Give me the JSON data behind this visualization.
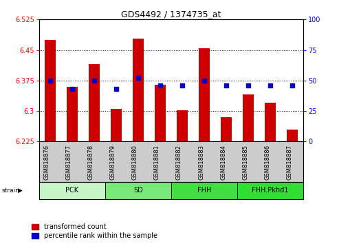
{
  "title": "GDS4492 / 1374735_at",
  "samples": [
    "GSM818876",
    "GSM818877",
    "GSM818878",
    "GSM818879",
    "GSM818880",
    "GSM818881",
    "GSM818882",
    "GSM818883",
    "GSM818884",
    "GSM818885",
    "GSM818886",
    "GSM818887"
  ],
  "transformed_count": [
    6.475,
    6.36,
    6.415,
    6.305,
    6.478,
    6.365,
    6.302,
    6.455,
    6.285,
    6.34,
    6.32,
    6.255
  ],
  "percentile_rank": [
    50,
    43,
    50,
    43,
    52,
    46,
    46,
    50,
    46,
    46,
    46,
    46
  ],
  "ylim_left": [
    6.225,
    6.525
  ],
  "ylim_right": [
    0,
    100
  ],
  "yticks_left": [
    6.225,
    6.3,
    6.375,
    6.45,
    6.525
  ],
  "yticks_right": [
    0,
    25,
    50,
    75,
    100
  ],
  "groups": [
    {
      "label": "PCK",
      "start": 0,
      "end": 3,
      "color": "#c8f5c8"
    },
    {
      "label": "SD",
      "start": 3,
      "end": 6,
      "color": "#78e878"
    },
    {
      "label": "FHH",
      "start": 6,
      "end": 9,
      "color": "#44dd44"
    },
    {
      "label": "FHH.Pkhd1",
      "start": 9,
      "end": 12,
      "color": "#33dd33"
    }
  ],
  "bar_color": "#cc0000",
  "dot_color": "#0000cc",
  "baseline": 6.225,
  "tick_area_color": "#cccccc",
  "legend_labels": [
    "transformed count",
    "percentile rank within the sample"
  ]
}
